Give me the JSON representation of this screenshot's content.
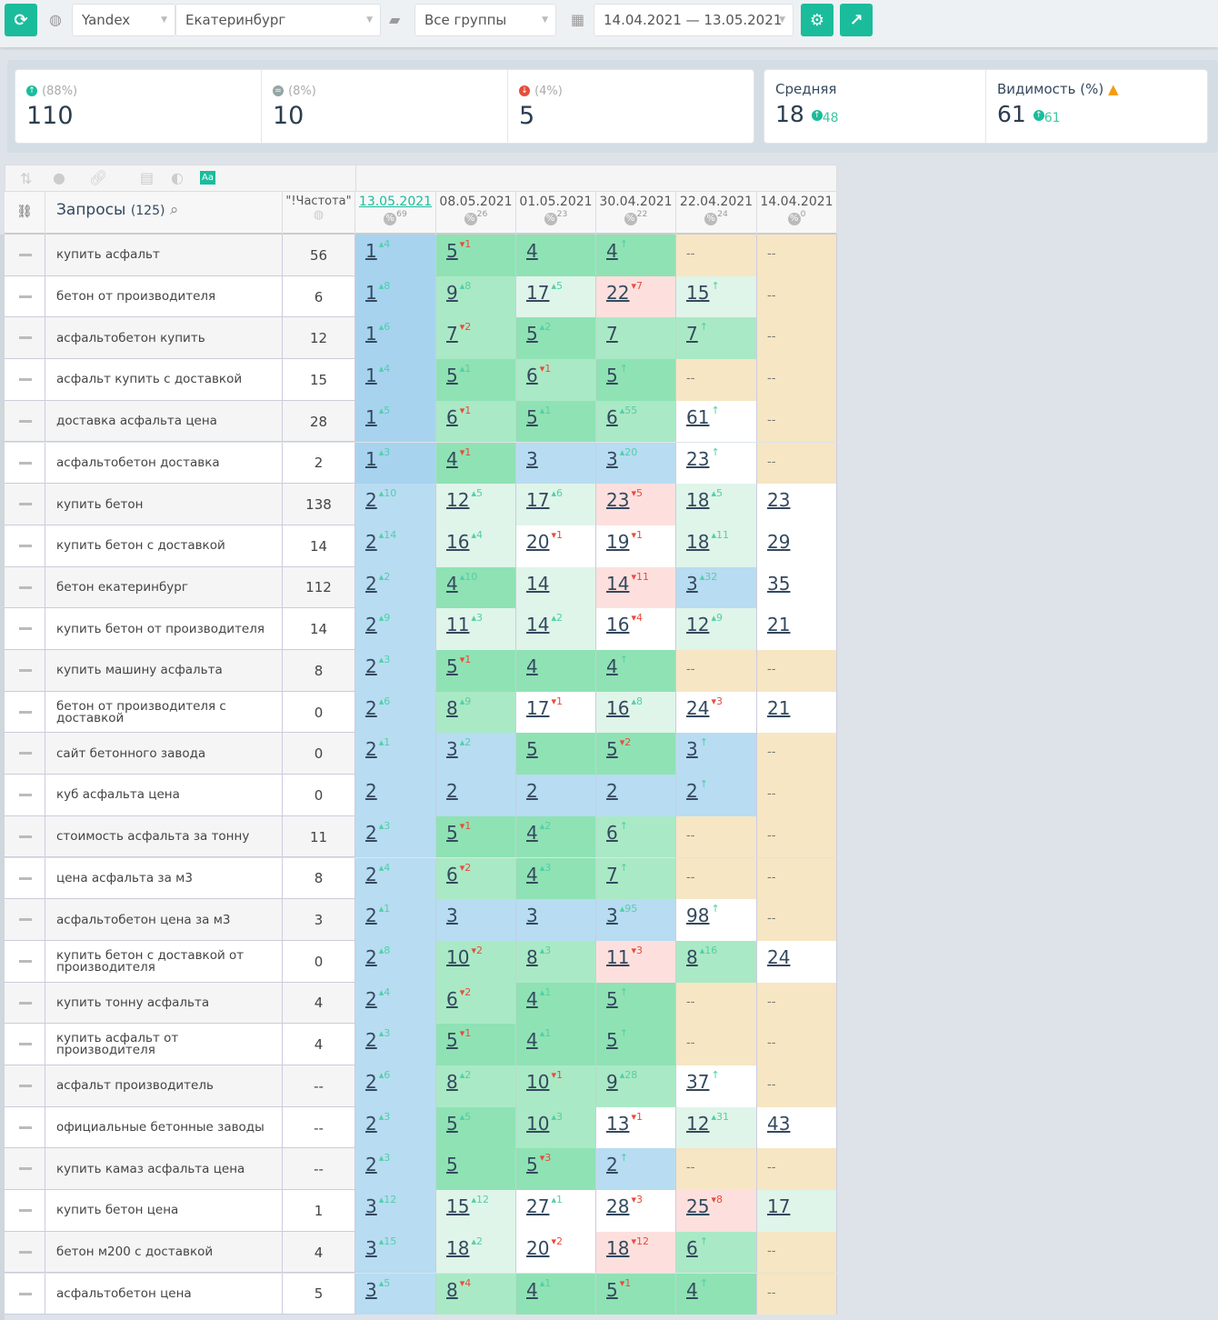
{
  "toolbar": {
    "engine": "Yandex",
    "region": "Екатеринбург",
    "group": "Все группы",
    "date_range": "14.04.2021 — 13.05.2021"
  },
  "stats": {
    "up": {
      "pct": "(88%)",
      "value": "110"
    },
    "same": {
      "pct": "(8%)",
      "value": "10"
    },
    "down": {
      "pct": "(4%)",
      "value": "5"
    },
    "avg": {
      "label": "Средняя",
      "value": "18",
      "delta": "48"
    },
    "visibility": {
      "label": "Видимость (%)",
      "value": "61",
      "delta": "61"
    }
  },
  "colors": {
    "accent": "#1abc9c",
    "warning": "#f39c12",
    "down": "#e74c3c"
  },
  "table": {
    "queries_label": "Запросы",
    "queries_count": "(125)",
    "freq_label": "\"!Частота\"",
    "dates": [
      {
        "date": "13.05.2021",
        "vis": "69"
      },
      {
        "date": "08.05.2021",
        "vis": "26"
      },
      {
        "date": "01.05.2021",
        "vis": "23"
      },
      {
        "date": "30.04.2021",
        "vis": "22"
      },
      {
        "date": "22.04.2021",
        "vis": "24"
      },
      {
        "date": "14.04.2021",
        "vis": "0"
      }
    ],
    "rows": [
      {
        "q": "купить асфальт",
        "f": "56",
        "p": [
          "1 +4",
          "5 -1",
          "4",
          "4 new",
          "--",
          "--"
        ]
      },
      {
        "q": "бетон от производителя",
        "f": "6",
        "p": [
          "1 +8",
          "9 +8",
          "17 +5",
          "22 -7 p",
          "15 new",
          "--"
        ]
      },
      {
        "q": "асфальтобетон купить",
        "f": "12",
        "p": [
          "1 +6",
          "7 -2",
          "5 +2",
          "7",
          "7 new",
          "--"
        ]
      },
      {
        "q": "асфальт купить с доставкой",
        "f": "15",
        "p": [
          "1 +4",
          "5 +1",
          "6 -1",
          "5 new",
          "--",
          "--"
        ]
      },
      {
        "q": "доставка асфальта цена",
        "f": "28",
        "p": [
          "1 +5",
          "6 -1",
          "5 +1",
          "6 +55",
          "61 new",
          "--"
        ]
      },
      {
        "q": "асфальтобетон доставка",
        "f": "2",
        "p": [
          "1 +3",
          "4 -1",
          "3",
          "3 +20",
          "23 new",
          "--"
        ]
      },
      {
        "q": "купить бетон",
        "f": "138",
        "p": [
          "2 +10",
          "12 +5",
          "17 +6",
          "23 -5 p",
          "18 +5",
          "23"
        ]
      },
      {
        "q": "купить бетон с доставкой",
        "f": "14",
        "p": [
          "2 +14",
          "16 +4",
          "20 -1",
          "19 -1",
          "18 +11",
          "29"
        ]
      },
      {
        "q": "бетон екатеринбург",
        "f": "112",
        "p": [
          "2 +2",
          "4 +10",
          "14",
          "14 -11 p",
          "3 +32",
          "35"
        ]
      },
      {
        "q": "купить бетон от производителя",
        "f": "14",
        "p": [
          "2 +9",
          "11 +3",
          "14 +2",
          "16 -4",
          "12 +9",
          "21"
        ]
      },
      {
        "q": "купить машину асфальта",
        "f": "8",
        "p": [
          "2 +3",
          "5 -1",
          "4",
          "4 new",
          "--",
          "--"
        ]
      },
      {
        "q": "бетон от производителя с доставкой",
        "f": "0",
        "p": [
          "2 +6",
          "8 +9",
          "17 -1",
          "16 +8",
          "24 -3",
          "21"
        ]
      },
      {
        "q": "сайт бетонного завода",
        "f": "0",
        "p": [
          "2 +1",
          "3 +2",
          "5",
          "5 -2",
          "3 new",
          "--"
        ]
      },
      {
        "q": "куб асфальта цена",
        "f": "0",
        "p": [
          "2",
          "2",
          "2",
          "2",
          "2 new",
          "--"
        ]
      },
      {
        "q": "стоимость асфальта за тонну",
        "f": "11",
        "p": [
          "2 +3",
          "5 -1",
          "4 +2",
          "6 new",
          "--",
          "--"
        ]
      },
      {
        "q": "цена асфальта за м3",
        "f": "8",
        "p": [
          "2 +4",
          "6 -2",
          "4 +3",
          "7 new",
          "--",
          "--"
        ]
      },
      {
        "q": "асфальтобетон цена за м3",
        "f": "3",
        "p": [
          "2 +1",
          "3",
          "3",
          "3 +95",
          "98 new",
          "--"
        ]
      },
      {
        "q": "купить бетон с доставкой от производителя",
        "f": "0",
        "p": [
          "2 +8",
          "10 -2",
          "8 +3",
          "11 -3 p",
          "8 +16",
          "24"
        ]
      },
      {
        "q": "купить тонну асфальта",
        "f": "4",
        "p": [
          "2 +4",
          "6 -2",
          "4 +1",
          "5 new",
          "--",
          "--"
        ]
      },
      {
        "q": "купить асфальт от производителя",
        "f": "4",
        "p": [
          "2 +3",
          "5 -1",
          "4 +1",
          "5 new",
          "--",
          "--"
        ]
      },
      {
        "q": "асфальт производитель",
        "f": "--",
        "p": [
          "2 +6",
          "8 +2",
          "10 -1",
          "9 +28",
          "37 new",
          "--"
        ]
      },
      {
        "q": "официальные бетонные заводы",
        "f": "--",
        "p": [
          "2 +3",
          "5 +5",
          "10 +3",
          "13 -1",
          "12 +31",
          "43"
        ]
      },
      {
        "q": "купить камаз асфальта цена",
        "f": "--",
        "p": [
          "2 +3",
          "5",
          "5 -3",
          "2 new",
          "--",
          "--"
        ]
      },
      {
        "q": "купить бетон цена",
        "f": "1",
        "p": [
          "3 +12",
          "15 +12",
          "27 +1",
          "28 -3",
          "25 -8 p",
          "17"
        ]
      },
      {
        "q": "бетон м200 с доставкой",
        "f": "4",
        "p": [
          "3 +15",
          "18 +2",
          "20 -2",
          "18 -12 p",
          "6 new",
          "--"
        ]
      },
      {
        "q": "асфальтобетон цена",
        "f": "5",
        "p": [
          "3 +5",
          "8 -4",
          "4 +1",
          "5 -1",
          "4 new",
          "--"
        ]
      }
    ]
  }
}
